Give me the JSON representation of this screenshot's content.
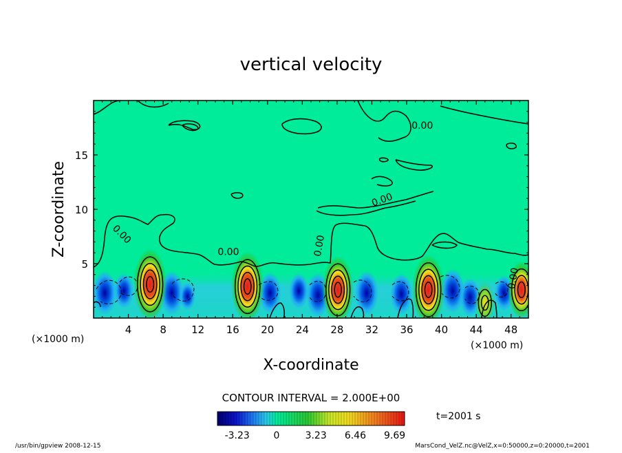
{
  "chart_data": {
    "type": "heatmap",
    "title": "vertical velocity",
    "xlabel": "X-coordinate",
    "ylabel": "Z-coordinate",
    "x_unit_left": "(×1000 m)",
    "x_unit_right": "(×1000 m)",
    "xlim": [
      0,
      50
    ],
    "ylim": [
      0,
      20
    ],
    "xticks": [
      "4",
      "8",
      "12",
      "16",
      "20",
      "24",
      "28",
      "32",
      "36",
      "40",
      "44",
      "48"
    ],
    "yticks": [
      "5",
      "10",
      "15"
    ],
    "contour_interval": "CONTOUR INTERVAL = 2.000E+00",
    "contour_labels": [
      {
        "text": "0.00",
        "x": 37.8,
        "z": 17.4,
        "rot": 0
      },
      {
        "text": "0.00",
        "x": 33.3,
        "z": 10.6,
        "rot": -20
      },
      {
        "text": "0.00",
        "x": 3.0,
        "z": 7.5,
        "rot": 45
      },
      {
        "text": "0.00",
        "x": 15.5,
        "z": 5.8,
        "rot": 0
      },
      {
        "text": "0.00",
        "x": 26.3,
        "z": 6.6,
        "rot": -80
      },
      {
        "text": "0.00",
        "x": 48.6,
        "z": 3.6,
        "rot": -80
      }
    ],
    "updrafts": [
      {
        "x": 6.5,
        "z": 3.1,
        "peak": 9.6
      },
      {
        "x": 17.7,
        "z": 2.9,
        "peak": 9.4
      },
      {
        "x": 28.1,
        "z": 2.6,
        "peak": 9.0
      },
      {
        "x": 38.5,
        "z": 2.6,
        "peak": 9.4
      },
      {
        "x": 45.0,
        "z": 1.4,
        "peak": 5.0
      },
      {
        "x": 49.2,
        "z": 2.6,
        "peak": 7.5
      }
    ],
    "downdrafts": [
      {
        "x": 1.3,
        "z": 2.3,
        "min": -2.6
      },
      {
        "x": 3.5,
        "z": 2.5,
        "min": -2.0
      },
      {
        "x": 9.0,
        "z": 2.3,
        "min": -2.6
      },
      {
        "x": 10.8,
        "z": 2.0,
        "min": -1.5
      },
      {
        "x": 20.3,
        "z": 2.3,
        "min": -2.4
      },
      {
        "x": 23.6,
        "z": 2.5,
        "min": -2.0
      },
      {
        "x": 25.8,
        "z": 2.1,
        "min": -2.6
      },
      {
        "x": 31.4,
        "z": 2.3,
        "min": -2.6
      },
      {
        "x": 35.4,
        "z": 2.2,
        "min": -2.4
      },
      {
        "x": 41.3,
        "z": 2.5,
        "min": -2.6
      },
      {
        "x": 43.3,
        "z": 1.9,
        "min": -2.2
      },
      {
        "x": 47.2,
        "z": 2.3,
        "min": -2.0
      }
    ],
    "colorbar": {
      "min": -4.85,
      "max": 10.5,
      "ticks": [
        "-3.23",
        "0",
        "3.23",
        "6.46",
        "9.69"
      ],
      "tick_values": [
        -3.23,
        0,
        3.23,
        6.46,
        9.69
      ]
    },
    "time_label": "t=2001 s",
    "colors": {
      "background_field": "#00EB9A",
      "strong_down": "#0000A0",
      "weak_down": "#0070FF",
      "weak_up": "#2EC832",
      "mid_up": "#F0E020",
      "strong_up": "#E02020"
    }
  },
  "footer": {
    "left": "/usr/bin/gpview   2008-12-15",
    "right": "MarsCond_VelZ.nc@VelZ,x=0:50000,z=0:20000,t=2001"
  }
}
